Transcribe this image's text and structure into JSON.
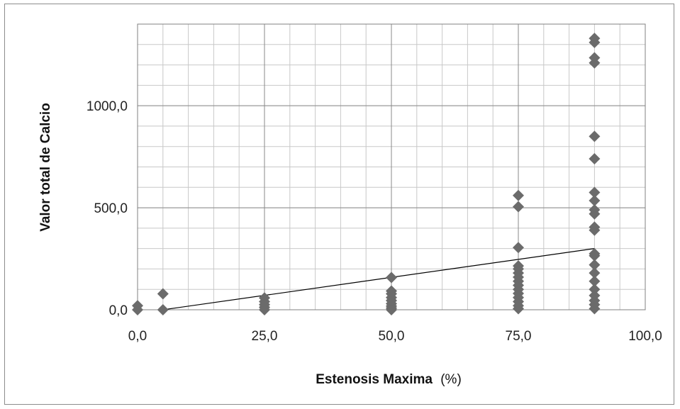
{
  "chart_data": {
    "type": "scatter",
    "title": "",
    "xlabel": "Estenosis Maxima",
    "xlabel_unit": "(%)",
    "ylabel": "Valor total de Calcio",
    "xlim": [
      0,
      100
    ],
    "ylim": [
      0,
      1400
    ],
    "x_ticks": [
      0,
      25,
      50,
      75,
      100
    ],
    "x_tick_labels": [
      "0,0",
      "25,0",
      "50,0",
      "75,0",
      "100,0"
    ],
    "y_ticks": [
      0,
      500,
      1000
    ],
    "y_tick_labels": [
      "0,0",
      "500,0",
      "1000,0"
    ],
    "x_minor_grid_step": 5,
    "y_minor_grid_step": 100,
    "grid": true,
    "legend": "none",
    "marker": "diamond",
    "marker_color": "#6b6b6b",
    "trendline": {
      "x": [
        5,
        90
      ],
      "y": [
        0,
        300
      ],
      "color": "#000000"
    },
    "series": [
      {
        "points": [
          [
            0,
            0
          ],
          [
            0,
            20
          ],
          [
            5,
            0
          ],
          [
            5,
            78
          ],
          [
            25,
            0
          ],
          [
            25,
            12
          ],
          [
            25,
            25
          ],
          [
            25,
            40
          ],
          [
            25,
            58
          ],
          [
            50,
            0
          ],
          [
            50,
            8
          ],
          [
            50,
            18
          ],
          [
            50,
            30
          ],
          [
            50,
            45
          ],
          [
            50,
            60
          ],
          [
            50,
            78
          ],
          [
            50,
            92
          ],
          [
            50,
            158
          ],
          [
            75,
            5
          ],
          [
            75,
            20
          ],
          [
            75,
            40
          ],
          [
            75,
            60
          ],
          [
            75,
            80
          ],
          [
            75,
            100
          ],
          [
            75,
            120
          ],
          [
            75,
            140
          ],
          [
            75,
            160
          ],
          [
            75,
            180
          ],
          [
            75,
            200
          ],
          [
            75,
            215
          ],
          [
            75,
            305
          ],
          [
            75,
            505
          ],
          [
            75,
            560
          ],
          [
            90,
            5
          ],
          [
            90,
            25
          ],
          [
            90,
            45
          ],
          [
            90,
            70
          ],
          [
            90,
            100
          ],
          [
            90,
            140
          ],
          [
            90,
            180
          ],
          [
            90,
            220
          ],
          [
            90,
            265
          ],
          [
            90,
            275
          ],
          [
            90,
            390
          ],
          [
            90,
            405
          ],
          [
            90,
            470
          ],
          [
            90,
            490
          ],
          [
            90,
            535
          ],
          [
            90,
            575
          ],
          [
            90,
            740
          ],
          [
            90,
            850
          ],
          [
            90,
            1210
          ],
          [
            90,
            1235
          ],
          [
            90,
            1310
          ],
          [
            90,
            1330
          ]
        ]
      }
    ]
  }
}
